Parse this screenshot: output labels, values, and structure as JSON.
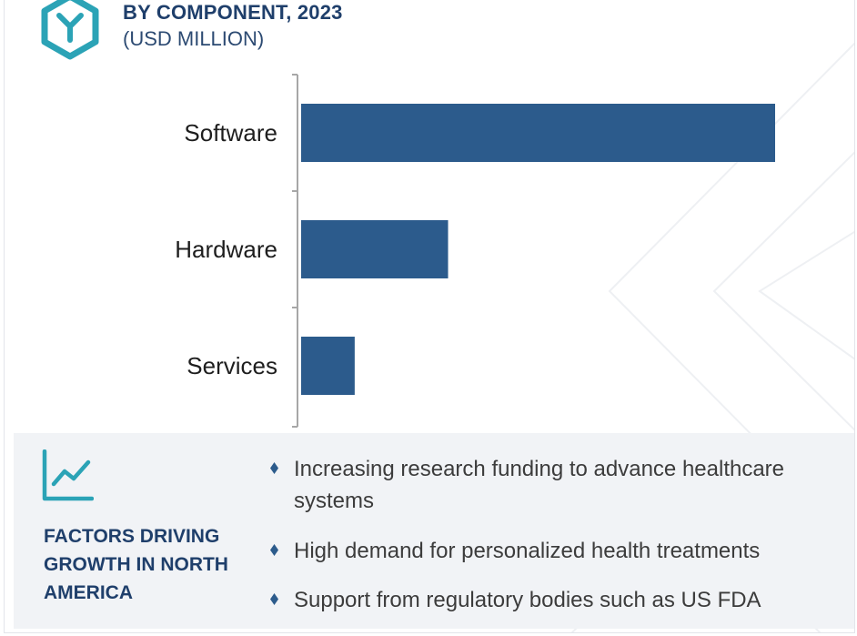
{
  "header": {
    "title": "BY COMPONENT, 2023",
    "subtitle": "(USD MILLION)",
    "logo_icon": "hexagon-y-logo-icon"
  },
  "chart_data": {
    "type": "bar",
    "orientation": "horizontal",
    "categories": [
      "Software",
      "Hardware",
      "Services"
    ],
    "values": [
      100,
      31,
      11.3
    ],
    "xlim": [
      0,
      100
    ],
    "grid": false,
    "legend": "none",
    "bar_color": "#2c5b8c"
  },
  "factors": {
    "icon": "trend-line-chart-icon",
    "title": "FACTORS DRIVING GROWTH IN NORTH AMERICA",
    "items": [
      "Increasing research funding to advance healthcare systems",
      "High demand for personalized health treatments",
      "Support from regulatory bodies such as US FDA"
    ]
  },
  "colors": {
    "accent": "#2ba3b6",
    "title": "#1f3f6b",
    "bar": "#2c5b8c",
    "panel": "#f1f3f6"
  }
}
